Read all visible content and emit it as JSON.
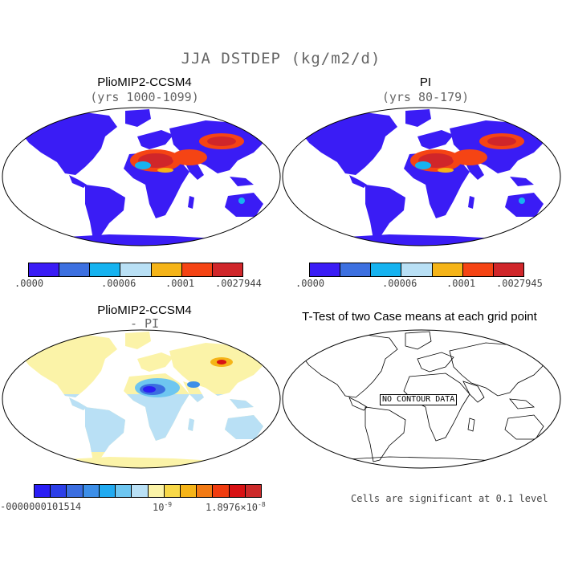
{
  "figure": {
    "title": "JJA DSTDEP (kg/m2/d)"
  },
  "panels": [
    {
      "title": "PlioMIP2-CCSM4",
      "subtitle": "(yrs 1000-1099)",
      "colorbar": {
        "labels": [
          ".0000",
          ".00006",
          ".0001",
          ".0027944"
        ],
        "colors": [
          "#3a1cf5",
          "#3d70e0",
          "#16b3f0",
          "#b9e0f5",
          "#f5b418",
          "#f54414",
          "#d0262a"
        ]
      }
    },
    {
      "title": "PI",
      "subtitle": "(yrs 80-179)",
      "colorbar": {
        "labels": [
          ".0000",
          ".00006",
          ".0001",
          ".0027945"
        ],
        "colors": [
          "#3a1cf5",
          "#3d70e0",
          "#16b3f0",
          "#b9e0f5",
          "#f5b418",
          "#f54414",
          "#d0262a"
        ]
      }
    },
    {
      "title": "PlioMIP2-CCSM4",
      "subtitle": "- PI",
      "colorbar": {
        "labels": [
          "-0000000101514",
          "10",
          "1.8976×10",
          "-9",
          "-8"
        ],
        "colors": [
          "#2a1ef5",
          "#2c3fe8",
          "#3b6ee0",
          "#3d8fe8",
          "#21aaf0",
          "#6ec6f0",
          "#b9e0f5",
          "#fbf3a8",
          "#f8d848",
          "#f5b418",
          "#f27a14",
          "#f03c10",
          "#d81214",
          "#cc2a2a"
        ]
      }
    },
    {
      "title": "T-Test of two Case means at each grid point",
      "no_data_label": "NO CONTOUR DATA",
      "note": "Cells are significant at 0.1 level"
    }
  ]
}
